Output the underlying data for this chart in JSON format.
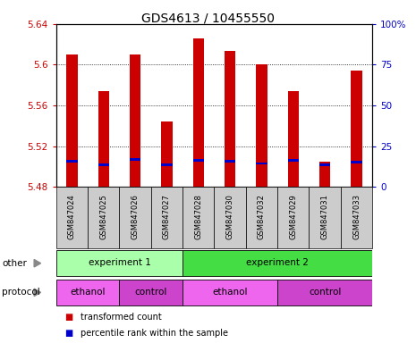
{
  "title": "GDS4613 / 10455550",
  "samples": [
    "GSM847024",
    "GSM847025",
    "GSM847026",
    "GSM847027",
    "GSM847028",
    "GSM847030",
    "GSM847032",
    "GSM847029",
    "GSM847031",
    "GSM847033"
  ],
  "red_values": [
    5.61,
    5.574,
    5.61,
    5.544,
    5.626,
    5.614,
    5.6,
    5.574,
    5.505,
    5.594
  ],
  "blue_values": [
    5.505,
    5.502,
    5.507,
    5.502,
    5.506,
    5.505,
    5.503,
    5.506,
    5.502,
    5.504
  ],
  "bar_bottom": 5.48,
  "ylim_min": 5.48,
  "ylim_max": 5.64,
  "yticks_left": [
    5.48,
    5.52,
    5.56,
    5.6,
    5.64
  ],
  "yticks_right_vals": [
    0,
    25,
    50,
    75,
    100
  ],
  "yticks_right_labels": [
    "0",
    "25",
    "50",
    "75",
    "100%"
  ],
  "left_tick_color": "#cc0000",
  "right_tick_color": "#0000cc",
  "bar_red_color": "#cc0000",
  "bar_blue_color": "#0000cc",
  "bar_width": 0.35,
  "experiment1_color": "#aaffaa",
  "experiment2_color": "#44dd44",
  "ethanol_color": "#ee66ee",
  "control_color": "#cc44cc",
  "sample_bg_color": "#cccccc",
  "other_label": "other",
  "protocol_label": "protocol",
  "legend_red": "transformed count",
  "legend_blue": "percentile rank within the sample"
}
